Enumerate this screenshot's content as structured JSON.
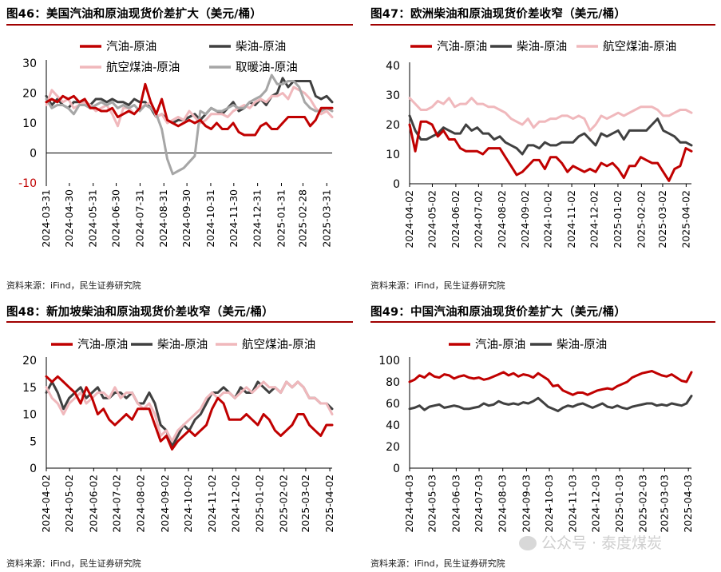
{
  "panels": [
    {
      "title": "图46：美国汽油和原油现货价差扩大（美元/桶）",
      "source": "资料来源：iFind，民生证券研究院"
    },
    {
      "title": "图47：欧洲柴油和原油现货价差收窄（美元/桶）",
      "source": "资料来源：iFind，民生证券研究院"
    },
    {
      "title": "图48：新加坡柴油和原油现货价差收窄（美元/桶）",
      "source": "资料来源：iFind，民生证券研究院"
    },
    {
      "title": "图49：中国汽油和原油现货价差扩大（美元/桶）",
      "source": "资料来源：iFind，民生证券研究院"
    }
  ],
  "watermark": "公众号 · 泰度煤炭",
  "colors": {
    "gasoline": "#c00000",
    "diesel": "#404040",
    "jet": "#f0b8bc",
    "heating": "#a6a6a6",
    "negative_tick": "#c00000",
    "rule": "#a00000"
  },
  "chart_data": [
    {
      "type": "line",
      "title": "图46：美国汽油和原油现货价差扩大（美元/桶）",
      "ylim": [
        -10,
        30
      ],
      "yticks": [
        -10,
        0,
        10,
        20,
        30
      ],
      "negative_ticks_red": true,
      "xticks": [
        "2024-03-31",
        "2024-04-30",
        "2024-05-31",
        "2024-06-30",
        "2024-07-31",
        "2024-08-31",
        "2024-09-30",
        "2024-10-31",
        "2024-11-30",
        "2024-12-31",
        "2025-01-31",
        "2025-02-28",
        "2025-03-31"
      ],
      "x_start": "2024-03-31",
      "x_end": "2025-04-07",
      "legend_rows": [
        [
          "汽油-原油",
          "柴油-原油"
        ],
        [
          "航空煤油-原油",
          "取暖油-原油"
        ]
      ],
      "series": [
        {
          "name": "汽油-原油",
          "color": "gasoline",
          "values": [
            17,
            18,
            17,
            19,
            18,
            19,
            17,
            18,
            15,
            15,
            14,
            14,
            15,
            12,
            13,
            14,
            13,
            15,
            23,
            17,
            13,
            18,
            11,
            10,
            9,
            10,
            11,
            10,
            11,
            9,
            8,
            10,
            8,
            8,
            10,
            7,
            6,
            6,
            6,
            9,
            10,
            8,
            8,
            10,
            12,
            12,
            12,
            12,
            9,
            11,
            15,
            15,
            15
          ]
        },
        {
          "name": "柴油-原油",
          "color": "diesel",
          "values": [
            19,
            16,
            18,
            16,
            15,
            17,
            17,
            17,
            16,
            18,
            18,
            17,
            18,
            17,
            17,
            16,
            18,
            17,
            17,
            15,
            12,
            13,
            11,
            10,
            11,
            11,
            12,
            13,
            11,
            13,
            15,
            14,
            13,
            15,
            17,
            14,
            15,
            17,
            16,
            18,
            16,
            19,
            20,
            25,
            22,
            24,
            24,
            24,
            24,
            19,
            18,
            19,
            17
          ]
        },
        {
          "name": "航空煤油-原油",
          "color": "jet",
          "values": [
            16,
            21,
            19,
            17,
            18,
            15,
            16,
            17,
            16,
            14,
            15,
            16,
            13,
            9,
            15,
            15,
            13,
            15,
            16,
            17,
            12,
            13,
            10,
            11,
            12,
            11,
            14,
            12,
            10,
            11,
            13,
            13,
            13,
            12,
            14,
            15,
            16,
            15,
            17,
            18,
            17,
            19,
            19,
            20,
            18,
            22,
            21,
            20,
            18,
            15,
            13,
            14,
            12
          ]
        },
        {
          "name": "取暖油-原油",
          "color": "heating",
          "values": [
            18,
            15,
            16,
            16,
            15,
            13,
            16,
            16,
            15,
            16,
            17,
            16,
            17,
            15,
            16,
            15,
            16,
            14,
            16,
            15,
            13,
            8,
            -2,
            -7,
            -6,
            -5,
            -3,
            -1,
            14,
            13,
            15,
            14,
            14,
            15,
            16,
            15,
            15,
            17,
            18,
            19,
            21,
            26,
            23,
            23,
            24,
            24,
            22,
            17,
            15,
            14,
            14,
            15,
            14
          ]
        }
      ]
    },
    {
      "type": "line",
      "title": "图47：欧洲柴油和原油现货价差收窄（美元/桶）",
      "ylim": [
        0,
        40
      ],
      "yticks": [
        0,
        10,
        20,
        30,
        40
      ],
      "xticks": [
        "2024-04-02",
        "2024-05-02",
        "2024-06-02",
        "2024-07-02",
        "2024-08-02",
        "2024-09-02",
        "2024-10-02",
        "2024-11-02",
        "2024-12-02",
        "2025-01-02",
        "2025-02-02",
        "2025-03-02",
        "2025-04-02"
      ],
      "x_start": "2024-04-02",
      "x_end": "2025-04-09",
      "legend_rows": [
        [
          "汽油-原油",
          "柴油-原油",
          "航空煤油-原油"
        ]
      ],
      "series": [
        {
          "name": "汽油-原油",
          "color": "gasoline",
          "values": [
            20,
            11,
            21,
            21,
            20,
            16,
            18,
            15,
            15,
            12,
            11,
            11,
            11,
            10,
            12,
            12,
            12,
            9,
            6,
            3,
            4,
            6,
            8,
            8,
            5,
            9,
            9,
            7,
            4,
            6,
            5,
            4,
            5,
            4,
            7,
            6,
            7,
            5,
            2,
            6,
            6,
            9,
            8,
            7,
            7,
            4,
            1,
            5,
            6,
            12,
            11
          ]
        },
        {
          "name": "柴油-原油",
          "color": "diesel",
          "values": [
            23,
            18,
            15,
            15,
            16,
            17,
            19,
            18,
            17,
            17,
            20,
            18,
            19,
            17,
            17,
            15,
            16,
            14,
            13,
            12,
            10,
            13,
            13,
            12,
            14,
            13,
            13,
            14,
            14,
            14,
            16,
            17,
            15,
            13,
            17,
            16,
            17,
            18,
            15,
            18,
            18,
            18,
            18,
            20,
            22,
            18,
            17,
            16,
            14,
            14,
            13
          ]
        },
        {
          "name": "航空煤油-原油",
          "color": "jet",
          "values": [
            29,
            27,
            25,
            25,
            26,
            28,
            27,
            29,
            26,
            27,
            27,
            29,
            27,
            27,
            26,
            26,
            25,
            24,
            22,
            21,
            20,
            22,
            19,
            21,
            21,
            22,
            22,
            23,
            23,
            22,
            23,
            22,
            18,
            20,
            23,
            22,
            23,
            24,
            23,
            24,
            25,
            26,
            26,
            26,
            25,
            23,
            23,
            24,
            25,
            25,
            24
          ]
        }
      ]
    },
    {
      "type": "line",
      "title": "图48：新加坡柴油和原油现货价差收窄（美元/桶）",
      "ylim": [
        0,
        20
      ],
      "yticks": [
        0,
        5,
        10,
        15,
        20
      ],
      "xticks": [
        "2024-04-02",
        "2024-05-02",
        "2024-06-02",
        "2024-07-02",
        "2024-08-02",
        "2024-09-02",
        "2024-10-02",
        "2024-11-02",
        "2024-12-02",
        "2025-01-02",
        "2025-02-02",
        "2025-03-02",
        "2025-04-02"
      ],
      "x_start": "2024-04-02",
      "x_end": "2025-04-05",
      "legend_rows": [
        [
          "汽油-原油",
          "柴油-原油",
          "航空煤油-原油"
        ]
      ],
      "series": [
        {
          "name": "汽油-原油",
          "color": "gasoline",
          "values": [
            17,
            16,
            17,
            16,
            15,
            14,
            12,
            15,
            13,
            10,
            11,
            9,
            8,
            9,
            10,
            9,
            11,
            11,
            11,
            8,
            5,
            6,
            3.5,
            5,
            6,
            7,
            6,
            7,
            8,
            11,
            13,
            12,
            9,
            9,
            9,
            10,
            9,
            8,
            10,
            9,
            7,
            6,
            7,
            8,
            10,
            10,
            8,
            7,
            6,
            8,
            8
          ]
        },
        {
          "name": "柴油-原油",
          "color": "diesel",
          "values": [
            14,
            16,
            14,
            11,
            13,
            14,
            15,
            13,
            14,
            15,
            13,
            13,
            14,
            14,
            13,
            14,
            12,
            12,
            14,
            12,
            8,
            7,
            4,
            6,
            8,
            7,
            9,
            10,
            12,
            14,
            14,
            15,
            14,
            13,
            15,
            14,
            14,
            16,
            15,
            14,
            15,
            14,
            16,
            15,
            16,
            15,
            13,
            13,
            12,
            12,
            11
          ]
        },
        {
          "name": "航空煤油-原油",
          "color": "jet",
          "values": [
            15,
            13,
            12,
            10,
            12,
            13,
            14,
            12,
            13,
            14,
            14,
            13,
            15,
            13,
            14,
            14,
            12,
            11,
            12,
            10,
            6,
            7,
            5,
            7,
            8,
            9,
            10,
            11,
            13,
            14,
            13,
            14,
            14,
            13,
            14,
            15,
            14,
            15,
            16,
            15,
            15,
            14,
            16,
            15,
            16,
            15,
            13,
            13,
            12,
            12,
            10
          ]
        }
      ]
    },
    {
      "type": "line",
      "title": "图49：中国汽油和原油现货价差扩大（美元/桶）",
      "ylim": [
        0,
        100
      ],
      "yticks": [
        0,
        20,
        40,
        60,
        80,
        100
      ],
      "xticks": [
        "2024-04-03",
        "2024-05-03",
        "2024-06-03",
        "2024-07-03",
        "2024-08-03",
        "2024-09-03",
        "2024-10-03",
        "2024-11-03",
        "2024-12-03",
        "2025-01-03",
        "2025-02-03",
        "2025-03-03",
        "2025-04-03"
      ],
      "x_start": "2024-04-03",
      "x_end": "2025-04-07",
      "legend_rows": [
        [
          "汽油-原油",
          "柴油-原油"
        ]
      ],
      "series": [
        {
          "name": "汽油-原油",
          "color": "gasoline",
          "values": [
            80,
            82,
            86,
            84,
            88,
            85,
            84,
            87,
            86,
            83,
            85,
            86,
            84,
            83,
            84,
            82,
            83,
            85,
            87,
            89,
            86,
            88,
            85,
            87,
            86,
            84,
            88,
            85,
            82,
            76,
            77,
            72,
            70,
            68,
            70,
            70,
            68,
            70,
            72,
            73,
            74,
            73,
            76,
            78,
            80,
            84,
            86,
            88,
            89,
            90,
            88,
            86,
            85,
            87,
            84,
            81,
            80,
            89
          ]
        },
        {
          "name": "柴油-原油",
          "color": "diesel",
          "values": [
            55,
            56,
            58,
            54,
            57,
            58,
            59,
            56,
            57,
            58,
            57,
            55,
            55,
            56,
            57,
            60,
            58,
            59,
            62,
            60,
            59,
            60,
            59,
            61,
            60,
            62,
            65,
            61,
            57,
            55,
            53,
            56,
            58,
            57,
            59,
            60,
            58,
            56,
            58,
            60,
            57,
            56,
            58,
            56,
            55,
            57,
            58,
            59,
            60,
            60,
            58,
            59,
            58,
            60,
            59,
            58,
            60,
            67
          ]
        }
      ]
    }
  ]
}
